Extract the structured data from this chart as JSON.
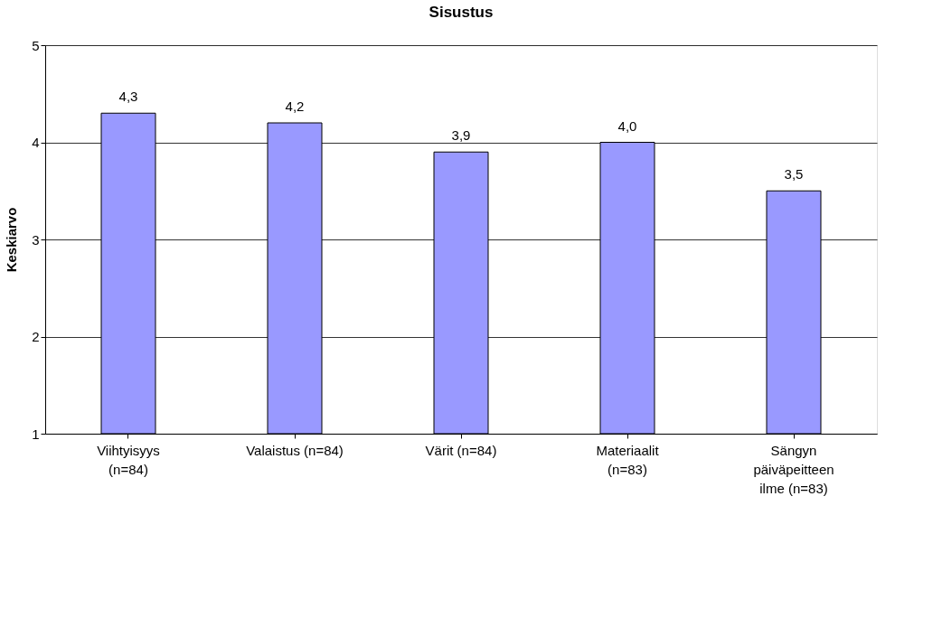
{
  "chart_data": {
    "type": "bar",
    "title": "Sisustus",
    "ylabel": "Keskiarvo",
    "categories": [
      "Viihtyisyys\n(n=84)",
      "Valaistus (n=84)",
      "Värit (n=84)",
      "Materiaalit\n(n=83)",
      "Sängyn\npäiväpeitteen\nilme (n=83)"
    ],
    "values": [
      4.3,
      4.2,
      3.9,
      4.0,
      3.5
    ],
    "value_labels": [
      "4,3",
      "4,2",
      "3,9",
      "4,0",
      "3,5"
    ],
    "color": "#9999ff",
    "ylim": [
      1,
      5
    ],
    "yticks": [
      1,
      2,
      3,
      4,
      5
    ],
    "grid": "y"
  }
}
